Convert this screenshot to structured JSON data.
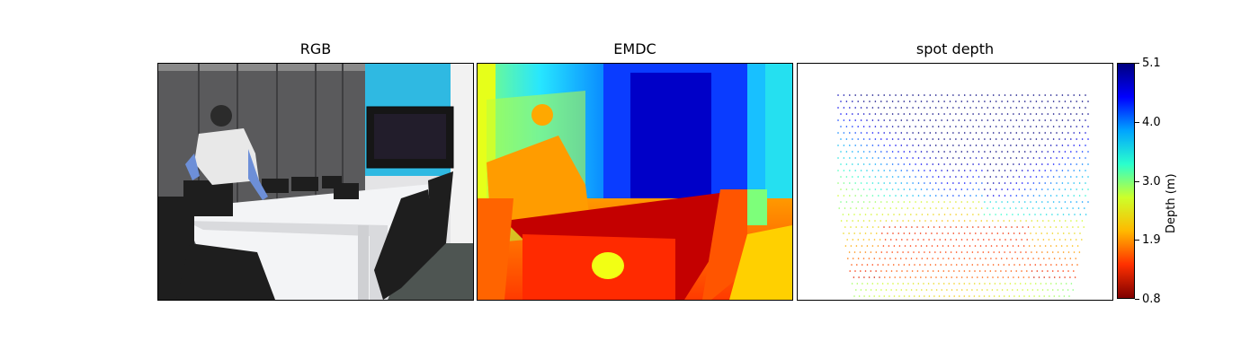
{
  "panels": [
    {
      "title": "RGB"
    },
    {
      "title": "EMDC"
    },
    {
      "title": "spot depth"
    }
  ],
  "colorbar": {
    "label": "Depth (m)",
    "ticks": [
      "5.1",
      "4.0",
      "3.0",
      "1.9",
      "0.8"
    ],
    "colormap": [
      "#00007f",
      "#0000ff",
      "#00a4ff",
      "#2affcd",
      "#cdff2a",
      "#ffb900",
      "#ff3000",
      "#7f0000"
    ]
  }
}
